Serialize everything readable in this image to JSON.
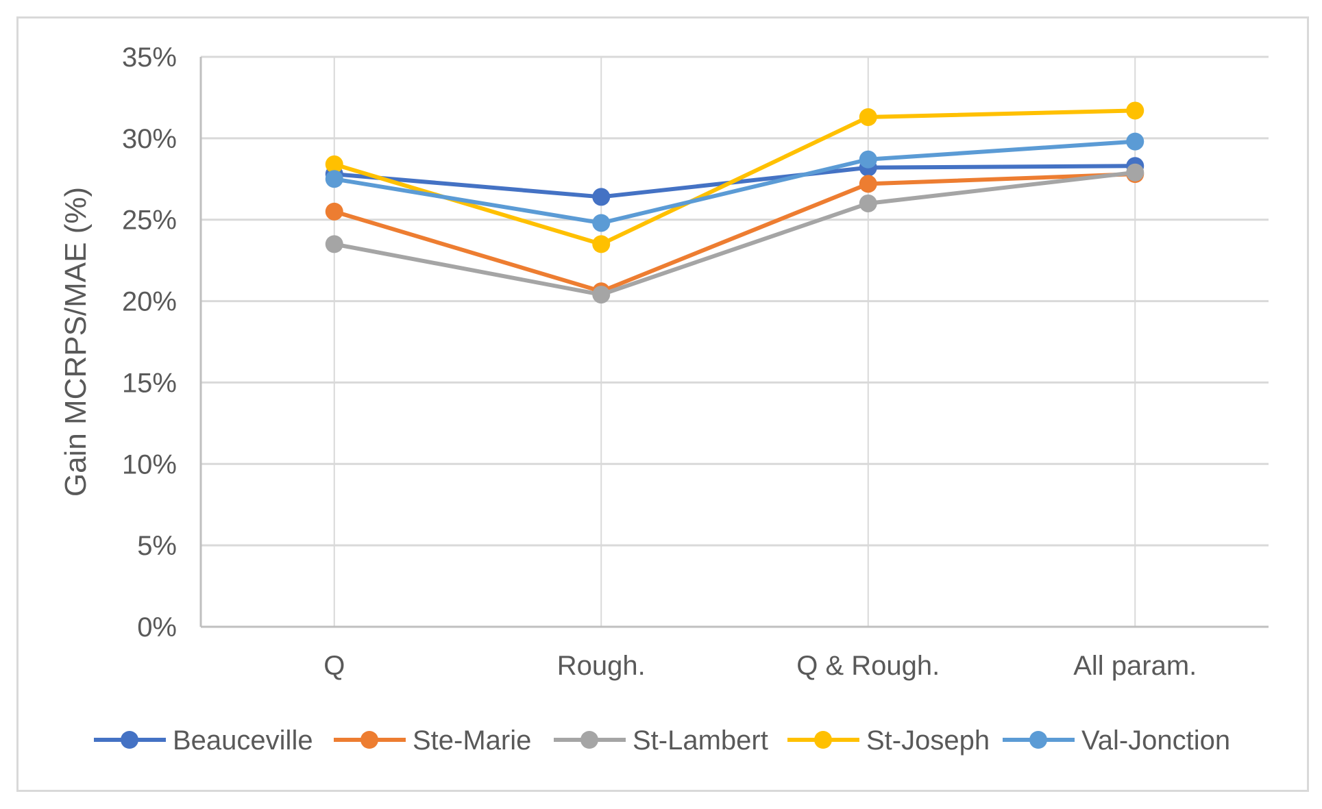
{
  "chart_data": {
    "type": "line",
    "title": "",
    "xlabel": "",
    "ylabel": "Gain MCRPS/MAE (%)",
    "categories": [
      "Q",
      "Rough.",
      "Q & Rough.",
      "All param."
    ],
    "ylim": [
      0,
      35
    ],
    "yticks": [
      0,
      5,
      10,
      15,
      20,
      25,
      30,
      35
    ],
    "ytick_labels": [
      "0%",
      "5%",
      "10%",
      "15%",
      "20%",
      "25%",
      "30%",
      "35%"
    ],
    "grid": true,
    "legend_position": "bottom",
    "series": [
      {
        "name": "Beauceville",
        "color": "#4472c4",
        "values": [
          27.8,
          26.4,
          28.2,
          28.3
        ]
      },
      {
        "name": "Ste-Marie",
        "color": "#ed7d31",
        "values": [
          25.5,
          20.6,
          27.2,
          27.8
        ]
      },
      {
        "name": "St-Lambert",
        "color": "#a5a5a5",
        "values": [
          23.5,
          20.4,
          26.0,
          27.9
        ]
      },
      {
        "name": "St-Joseph",
        "color": "#ffc000",
        "values": [
          28.4,
          23.5,
          31.3,
          31.7
        ]
      },
      {
        "name": "Val-Jonction",
        "color": "#5b9bd5",
        "values": [
          27.5,
          24.8,
          28.7,
          29.8
        ]
      }
    ]
  }
}
